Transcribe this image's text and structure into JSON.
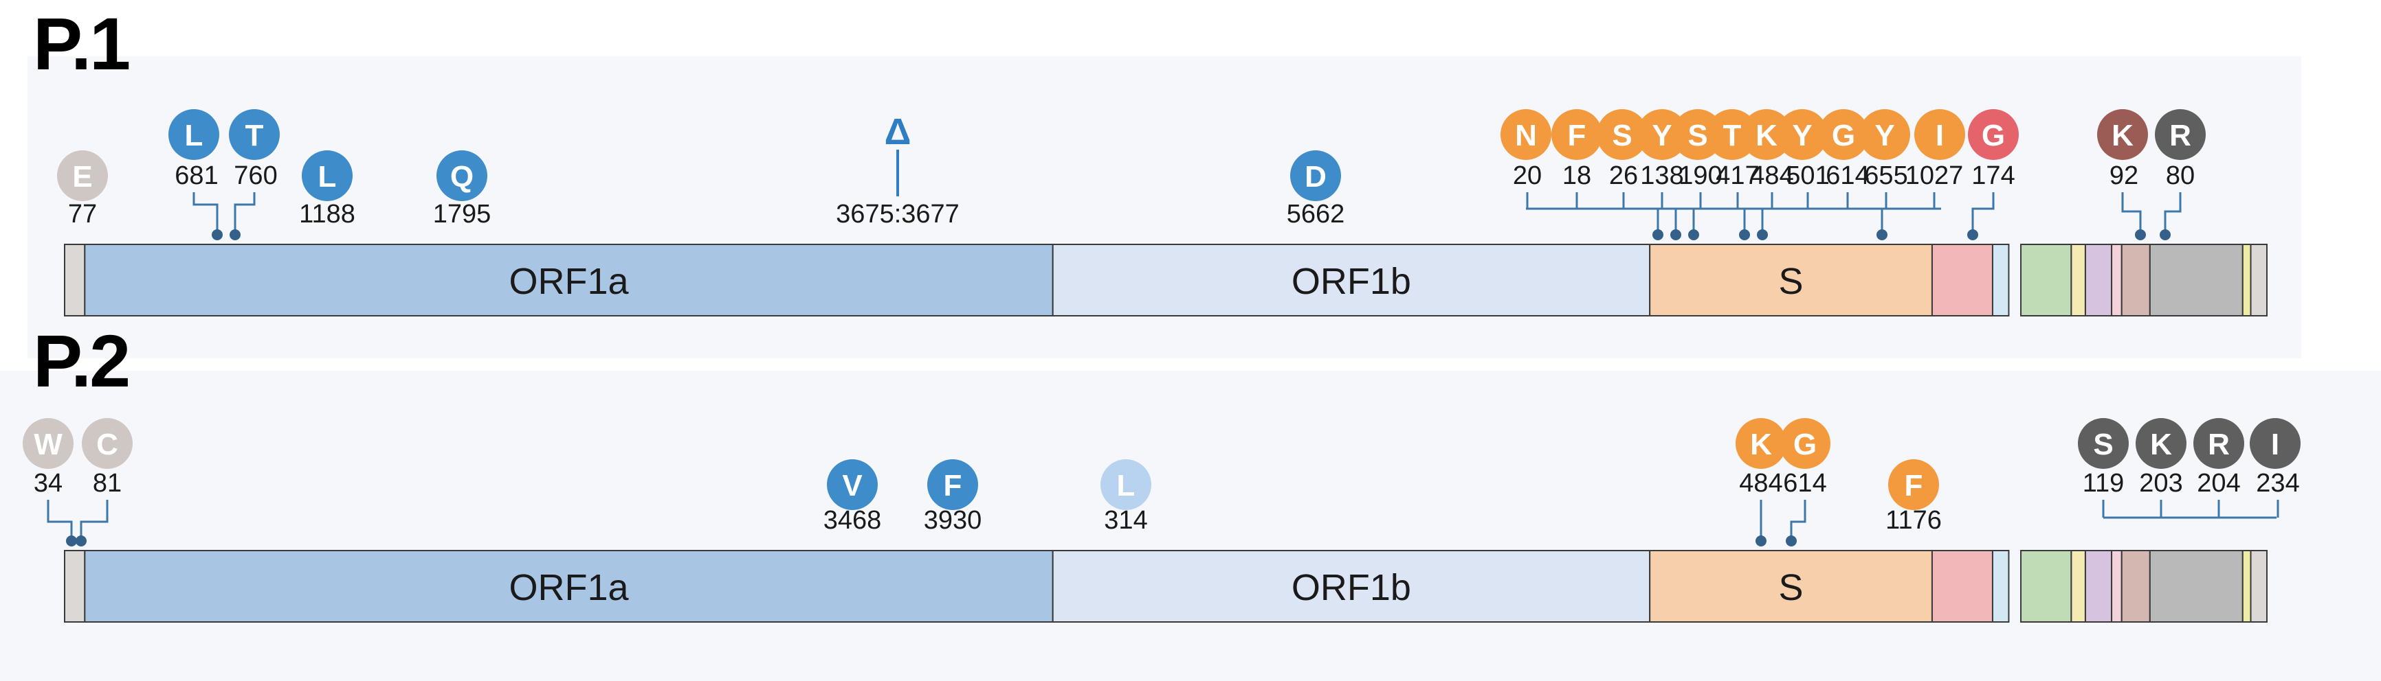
{
  "panels": [
    {
      "id": "p1",
      "label": "P.1",
      "genes": [
        {
          "name": "5UTR",
          "label": "",
          "start": 0,
          "end": 1,
          "color": "#dcd8d6"
        },
        {
          "name": "ORF1a",
          "label": "ORF1a",
          "start": 1,
          "end": 49,
          "color": "#a8c6e3"
        },
        {
          "name": "ORF1b",
          "label": "ORF1b",
          "start": 49,
          "end": 78.6,
          "color": "#dbe5f3"
        },
        {
          "name": "S",
          "label": "S",
          "start": 78.6,
          "end": 92.6,
          "color": "#f7cfab"
        },
        {
          "name": "ORF3a",
          "label": "",
          "start": 92.6,
          "end": 95.6,
          "color": "#f1b7b9"
        },
        {
          "name": "E",
          "label": "",
          "start": 95.6,
          "end": 96.4,
          "color": "#d3e8f2"
        },
        {
          "name": "M",
          "label": "",
          "start": 97,
          "end": 99.5,
          "color": "#bfdcb6"
        },
        {
          "name": "ORF6",
          "label": "",
          "start": 99.5,
          "end": 100.2,
          "color": "#f3ebb3"
        },
        {
          "name": "ORF7a",
          "label": "",
          "start": 100.2,
          "end": 101.5,
          "color": "#d6c3df"
        },
        {
          "name": "ORF7b",
          "label": "",
          "start": 101.5,
          "end": 102,
          "color": "#f4d2db"
        },
        {
          "name": "ORF8",
          "label": "",
          "start": 102,
          "end": 103.4,
          "color": "#d4b7b1"
        },
        {
          "name": "N",
          "label": "",
          "start": 103.4,
          "end": 108,
          "color": "#b9b9b9"
        },
        {
          "name": "ORF10",
          "label": "",
          "start": 108,
          "end": 108.4,
          "color": "#efeca6"
        },
        {
          "name": "3UTR",
          "label": "",
          "start": 108.4,
          "end": 109.2,
          "color": "#dcd8d6"
        }
      ],
      "mutations": [
        {
          "aa": "E",
          "pos": "77",
          "color": "#cfc7c3",
          "genome": 1
        },
        {
          "aa": "L",
          "pos": "681",
          "color": "#3f8ccb",
          "genome": 7.5
        },
        {
          "aa": "T",
          "pos": "760",
          "color": "#3f8ccb",
          "genome": 8.3
        },
        {
          "aa": "L",
          "pos": "1188",
          "color": "#3f8ccb",
          "genome": 12.9
        },
        {
          "aa": "Q",
          "pos": "1795",
          "color": "#3f8ccb",
          "genome": 19.7
        },
        {
          "aa": "Δ",
          "pos": "3675:3677",
          "color": "#3f8ccb",
          "genome": 41.7
        },
        {
          "aa": "D",
          "pos": "5662",
          "color": "#3f8ccb",
          "genome": 62.3
        },
        {
          "aa": "N",
          "pos": "20",
          "color": "#f39a3e",
          "genome": 78.6
        },
        {
          "aa": "F",
          "pos": "18",
          "color": "#f39a3e",
          "genome": 78.6
        },
        {
          "aa": "S",
          "pos": "26",
          "color": "#f39a3e",
          "genome": 78.7
        },
        {
          "aa": "Y",
          "pos": "138",
          "color": "#f39a3e",
          "genome": 79.4
        },
        {
          "aa": "S",
          "pos": "190",
          "color": "#f39a3e",
          "genome": 79.8
        },
        {
          "aa": "T",
          "pos": "417",
          "color": "#f39a3e",
          "genome": 81.3
        },
        {
          "aa": "K",
          "pos": "484",
          "color": "#f39a3e",
          "genome": 81.7
        },
        {
          "aa": "Y",
          "pos": "501",
          "color": "#f39a3e",
          "genome": 82.3
        },
        {
          "aa": "G",
          "pos": "614",
          "color": "#f39a3e",
          "genome": 82.7
        },
        {
          "aa": "Y",
          "pos": "655",
          "color": "#f39a3e",
          "genome": 82.9
        },
        {
          "aa": "I",
          "pos": "1027",
          "color": "#f39a3e",
          "genome": 86.8
        },
        {
          "aa": "G",
          "pos": "174",
          "color": "#e5636b",
          "genome": 95.3
        },
        {
          "aa": "K",
          "pos": "92",
          "color": "#9a5c54",
          "genome": 103.1
        },
        {
          "aa": "R",
          "pos": "80",
          "color": "#5f5f5f",
          "genome": 104.2
        }
      ]
    },
    {
      "id": "p2",
      "label": "P.2",
      "genes": [
        {
          "name": "5UTR",
          "label": "",
          "start": 0,
          "end": 1,
          "color": "#dcd8d6"
        },
        {
          "name": "ORF1a",
          "label": "ORF1a",
          "start": 1,
          "end": 49,
          "color": "#a8c6e3"
        },
        {
          "name": "ORF1b",
          "label": "ORF1b",
          "start": 49,
          "end": 78.6,
          "color": "#dbe5f3"
        },
        {
          "name": "S",
          "label": "S",
          "start": 78.6,
          "end": 92.6,
          "color": "#f7cfab"
        },
        {
          "name": "ORF3a",
          "label": "",
          "start": 92.6,
          "end": 95.6,
          "color": "#f1b7b9"
        },
        {
          "name": "E",
          "label": "",
          "start": 95.6,
          "end": 96.4,
          "color": "#d3e8f2"
        },
        {
          "name": "M",
          "label": "",
          "start": 97,
          "end": 99.5,
          "color": "#bfdcb6"
        },
        {
          "name": "ORF6",
          "label": "",
          "start": 99.5,
          "end": 100.2,
          "color": "#f3ebb3"
        },
        {
          "name": "ORF7a",
          "label": "",
          "start": 100.2,
          "end": 101.5,
          "color": "#d6c3df"
        },
        {
          "name": "ORF7b",
          "label": "",
          "start": 101.5,
          "end": 102,
          "color": "#f4d2db"
        },
        {
          "name": "ORF8",
          "label": "",
          "start": 102,
          "end": 103.4,
          "color": "#d4b7b1"
        },
        {
          "name": "N",
          "label": "",
          "start": 103.4,
          "end": 108,
          "color": "#b9b9b9"
        },
        {
          "name": "ORF10",
          "label": "",
          "start": 108,
          "end": 108.4,
          "color": "#efeca6"
        },
        {
          "name": "3UTR",
          "label": "",
          "start": 108.4,
          "end": 109.2,
          "color": "#dcd8d6"
        }
      ],
      "mutations": [
        {
          "aa": "W",
          "pos": "34",
          "color": "#cfc7c3",
          "genome": 0.3
        },
        {
          "aa": "C",
          "pos": "81",
          "color": "#cfc7c3",
          "genome": 0.7
        },
        {
          "aa": "V",
          "pos": "3468",
          "color": "#3f8ccb",
          "genome": 39.4
        },
        {
          "aa": "F",
          "pos": "3930",
          "color": "#3f8ccb",
          "genome": 44.5
        },
        {
          "aa": "L",
          "pos": "314",
          "color": "#b8d3ef",
          "genome": 52.3
        },
        {
          "aa": "K",
          "pos": "484",
          "color": "#f39a3e",
          "genome": 83.7
        },
        {
          "aa": "G",
          "pos": "614",
          "color": "#f39a3e",
          "genome": 85.2
        },
        {
          "aa": "F",
          "pos": "1176",
          "color": "#f39a3e",
          "genome": 91.9
        },
        {
          "aa": "S",
          "pos": "119",
          "color": "#5f5f5f",
          "genome": 104.8
        },
        {
          "aa": "K",
          "pos": "203",
          "color": "#5f5f5f",
          "genome": 105.5
        },
        {
          "aa": "R",
          "pos": "204",
          "color": "#5f5f5f",
          "genome": 105.6
        },
        {
          "aa": "I",
          "pos": "234",
          "color": "#5f5f5f",
          "genome": 105.8
        }
      ]
    }
  ]
}
